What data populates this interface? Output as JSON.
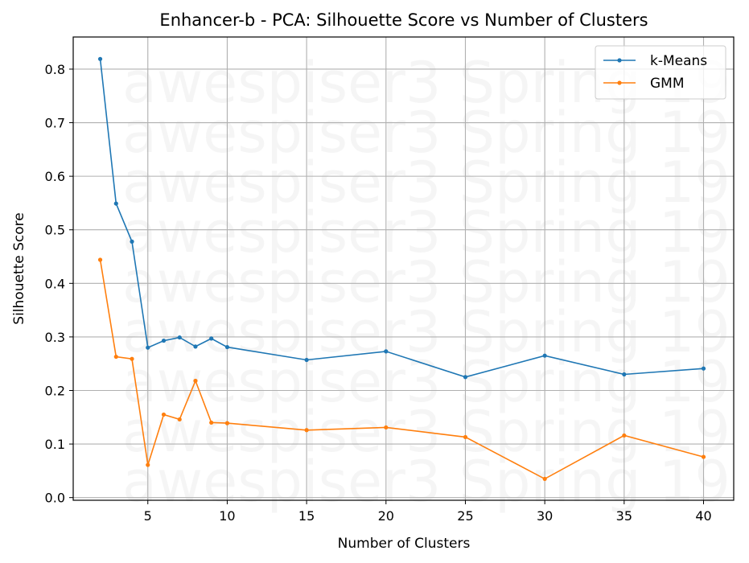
{
  "chart_data": {
    "type": "line",
    "title": "Enhancer-b - PCA: Silhouette Score vs Number of Clusters",
    "xlabel": "Number of Clusters",
    "ylabel": "Silhouette Score",
    "x": [
      2,
      3,
      4,
      5,
      6,
      7,
      8,
      9,
      10,
      15,
      20,
      25,
      30,
      35,
      40
    ],
    "xlim": [
      0.3,
      41.9
    ],
    "ylim": [
      -0.005,
      0.86
    ],
    "xticks": [
      5,
      10,
      15,
      20,
      25,
      30,
      35,
      40
    ],
    "yticks": [
      0.0,
      0.1,
      0.2,
      0.3,
      0.4,
      0.5,
      0.6,
      0.7,
      0.8
    ],
    "ytick_labels": [
      "0.0",
      "0.1",
      "0.2",
      "0.3",
      "0.4",
      "0.5",
      "0.6",
      "0.7",
      "0.8"
    ],
    "grid": true,
    "legend": "top-right",
    "series": [
      {
        "name": "k-Means",
        "color": "#1f77b4",
        "values": [
          0.819,
          0.549,
          0.478,
          0.28,
          0.293,
          0.299,
          0.282,
          0.297,
          0.281,
          0.257,
          0.273,
          0.225,
          0.265,
          0.23,
          0.241
        ]
      },
      {
        "name": "GMM",
        "color": "#ff7f0e",
        "values": [
          0.444,
          0.263,
          0.259,
          0.061,
          0.155,
          0.146,
          0.218,
          0.14,
          0.139,
          0.126,
          0.131,
          0.113,
          0.035,
          0.116,
          0.076
        ]
      }
    ],
    "watermark": "awespiser3 Spring 19"
  }
}
